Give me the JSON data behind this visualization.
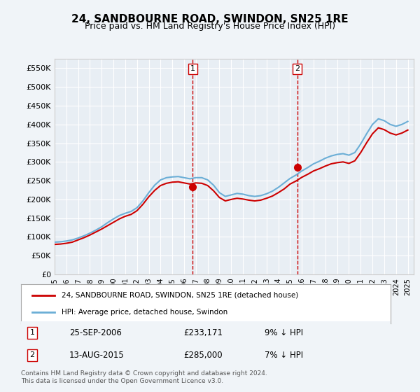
{
  "title": "24, SANDBOURNE ROAD, SWINDON, SN25 1RE",
  "subtitle": "Price paid vs. HM Land Registry's House Price Index (HPI)",
  "legend_line1": "24, SANDBOURNE ROAD, SWINDON, SN25 1RE (detached house)",
  "legend_line2": "HPI: Average price, detached house, Swindon",
  "sale1_label": "1",
  "sale1_date": "25-SEP-2006",
  "sale1_price": "£233,171",
  "sale1_hpi": "9% ↓ HPI",
  "sale1_year": 2006.73,
  "sale1_value": 233171,
  "sale2_label": "2",
  "sale2_date": "13-AUG-2015",
  "sale2_price": "£285,000",
  "sale2_hpi": "7% ↓ HPI",
  "sale2_year": 2015.62,
  "sale2_value": 285000,
  "footer": "Contains HM Land Registry data © Crown copyright and database right 2024.\nThis data is licensed under the Open Government Licence v3.0.",
  "ylim": [
    0,
    575000
  ],
  "xlim_start": 1995.0,
  "xlim_end": 2025.5,
  "hpi_color": "#6baed6",
  "price_color": "#cc0000",
  "vline_color": "#cc0000",
  "bg_color": "#f0f4f8",
  "plot_bg": "#e8eef4",
  "grid_color": "#ffffff",
  "yticks": [
    0,
    50000,
    100000,
    150000,
    200000,
    250000,
    300000,
    350000,
    400000,
    450000,
    500000,
    550000
  ],
  "ytick_labels": [
    "£0",
    "£50K",
    "£100K",
    "£150K",
    "£200K",
    "£250K",
    "£300K",
    "£350K",
    "£400K",
    "£450K",
    "£500K",
    "£550K"
  ],
  "xticks": [
    1995,
    1996,
    1997,
    1998,
    1999,
    2000,
    2001,
    2002,
    2003,
    2004,
    2005,
    2006,
    2007,
    2008,
    2009,
    2010,
    2011,
    2012,
    2013,
    2014,
    2015,
    2016,
    2017,
    2018,
    2019,
    2020,
    2021,
    2022,
    2023,
    2024,
    2025
  ]
}
